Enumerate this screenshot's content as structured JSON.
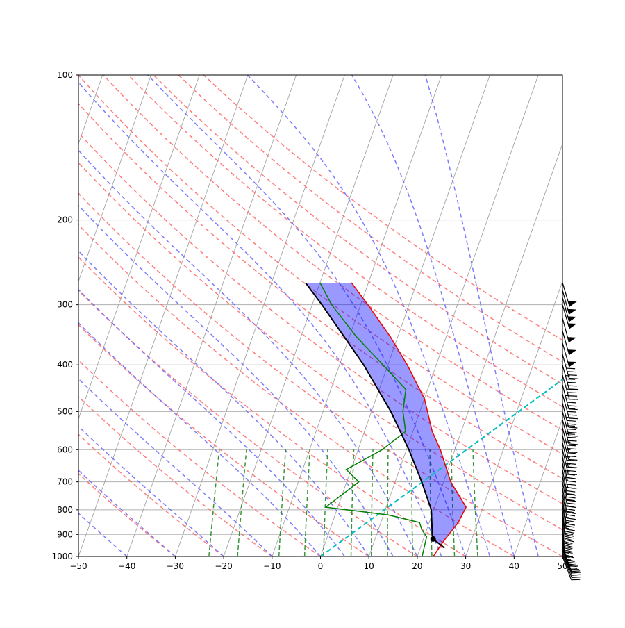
{
  "chart_data": {
    "type": "skew-t",
    "title": "",
    "xlabel": "",
    "ylabel": "",
    "xlim": [
      -50,
      50
    ],
    "ylim": [
      1000,
      100
    ],
    "y_scale": "log",
    "x_ticks": [
      "−50",
      "−40",
      "−30",
      "−20",
      "−10",
      "0",
      "10",
      "20",
      "30",
      "40",
      "50"
    ],
    "y_ticks": [
      "100",
      "200",
      "300",
      "400",
      "500",
      "600",
      "700",
      "800",
      "900",
      "1000"
    ],
    "y_tick_values": [
      100,
      200,
      300,
      400,
      500,
      600,
      700,
      800,
      900,
      1000
    ],
    "grid": true,
    "skew_factor": 35,
    "background_lines": {
      "isotherms": {
        "color": "#999999",
        "from": -170,
        "to": 60,
        "step": 10
      },
      "dry_adiabats": {
        "color": "#ff6666",
        "theta_c": [
          -30,
          -20,
          -10,
          0,
          10,
          20,
          30,
          40,
          50,
          60,
          70,
          80,
          90,
          100,
          110,
          120,
          130,
          140
        ]
      },
      "moist_adiabats": {
        "color": "#6666ff",
        "start_c": [
          -40,
          -30,
          -20,
          -10,
          0,
          5,
          10,
          15,
          20,
          25,
          30,
          35,
          40,
          45
        ]
      },
      "mixing_ratio_lines": {
        "color": "#228b22",
        "g_per_kg": [
          0.6,
          1,
          2,
          3,
          4,
          6,
          8,
          10,
          14,
          18,
          24,
          32
        ]
      }
    },
    "series": [
      {
        "key": "temperature",
        "color": "#ee0000",
        "pressure": [
          1000,
          950,
          920,
          850,
          790,
          700,
          600,
          550,
          470,
          400,
          350,
          300,
          270
        ],
        "values": [
          23.3,
          24.0,
          24.5,
          26.0,
          26.5,
          21.5,
          17.0,
          14.0,
          10.0,
          4.0,
          -1.5,
          -8.5,
          -13.5
        ]
      },
      {
        "key": "dewpoint",
        "color": "#008000",
        "pressure": [
          1000,
          910,
          880,
          850,
          820,
          790,
          700,
          660,
          600,
          550,
          500,
          450,
          400,
          350,
          300,
          270
        ],
        "values": [
          21.0,
          20.5,
          19.0,
          18.0,
          11.0,
          -2.5,
          2.5,
          -1.0,
          5.0,
          8.5,
          6.5,
          5.5,
          -1.0,
          -8.5,
          -16.0,
          -20.0
        ]
      },
      {
        "key": "parcel_path",
        "color": "#000000",
        "pressure": [
          960,
          920,
          900,
          800,
          700,
          600,
          500,
          400,
          300,
          270
        ],
        "values": [
          25.0,
          22.0,
          21.5,
          19.5,
          15.5,
          10.5,
          4.0,
          -5.0,
          -18.0,
          -23.0
        ]
      }
    ],
    "annotations": {
      "lcl_point": {
        "pressure": 920,
        "temperature": 22.0
      },
      "cape_fill_color": "#ff0000",
      "cin_fill_color": "#0000ff",
      "reference_line": {
        "color": "#00bfbf",
        "from": {
          "pressure": 1000,
          "temperature": 0
        },
        "to": {
          "pressure": 320,
          "temperature": 50
        }
      }
    },
    "wind_barbs": {
      "color": "#000000",
      "pressure": [
        1000,
        990,
        980,
        970,
        960,
        950,
        940,
        930,
        920,
        900,
        880,
        860,
        840,
        820,
        800,
        780,
        760,
        740,
        720,
        700,
        680,
        660,
        640,
        620,
        600,
        580,
        560,
        540,
        520,
        500,
        480,
        460,
        440,
        420,
        400,
        380,
        360,
        340,
        320,
        300,
        290,
        280,
        270
      ],
      "u_kt": [
        -3,
        -4,
        -5,
        -6,
        -6,
        -6,
        -5,
        -5,
        -4,
        -3,
        -2,
        -2,
        -2,
        -3,
        -3,
        -4,
        -4,
        -5,
        -5,
        -6,
        -6,
        -6,
        -7,
        -7,
        -8,
        -8,
        -9,
        -9,
        -10,
        -10,
        -10,
        -11,
        -11,
        -12,
        -12,
        -12,
        -13,
        -13,
        -13,
        -14,
        -14,
        -14,
        -15
      ],
      "v_kt": [
        8,
        10,
        12,
        14,
        16,
        18,
        20,
        22,
        24,
        26,
        28,
        30,
        30,
        28,
        26,
        26,
        26,
        28,
        28,
        30,
        30,
        32,
        32,
        34,
        34,
        34,
        36,
        36,
        38,
        38,
        40,
        40,
        42,
        42,
        44,
        44,
        46,
        46,
        48,
        48,
        50,
        50,
        50
      ]
    }
  }
}
